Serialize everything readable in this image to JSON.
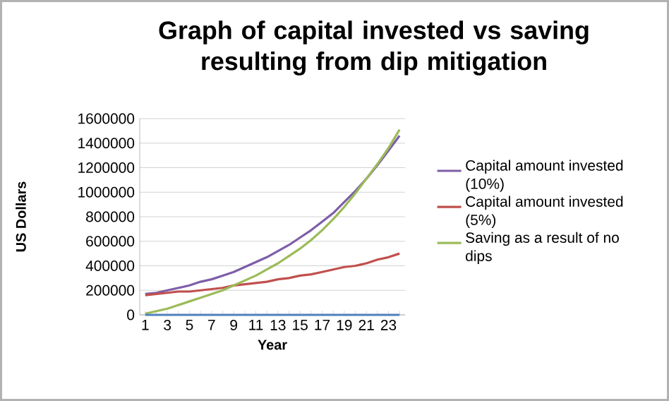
{
  "chart_data": {
    "type": "line",
    "title": "Graph of capital invested vs saving resulting from dip mitigation",
    "xlabel": "Year",
    "ylabel": "US Dollars",
    "categories": [
      "1",
      null,
      "3",
      null,
      "5",
      null,
      "7",
      null,
      "9",
      null,
      "11",
      null,
      "13",
      null,
      "15",
      null,
      "17",
      null,
      "19",
      null,
      "21",
      null,
      "23",
      null
    ],
    "series": [
      {
        "name": "Capital amount invested (10%)",
        "color": "#7e5ea8",
        "values": [
          170000,
          180000,
          200000,
          220000,
          240000,
          270000,
          290000,
          320000,
          350000,
          390000,
          430000,
          470000,
          520000,
          570000,
          630000,
          690000,
          760000,
          830000,
          920000,
          1010000,
          1110000,
          1220000,
          1340000,
          1460000
        ]
      },
      {
        "name": "Capital amount invested (5%)",
        "color": "#c0504d",
        "values": [
          160000,
          170000,
          180000,
          190000,
          190000,
          200000,
          210000,
          220000,
          240000,
          250000,
          260000,
          270000,
          290000,
          300000,
          320000,
          330000,
          350000,
          370000,
          390000,
          400000,
          420000,
          450000,
          470000,
          500000
        ]
      },
      {
        "name": "Saving as a result of no dips",
        "color": "#9bbb59",
        "values": [
          10000,
          30000,
          50000,
          80000,
          110000,
          140000,
          170000,
          200000,
          240000,
          280000,
          320000,
          370000,
          420000,
          480000,
          540000,
          610000,
          690000,
          780000,
          880000,
          990000,
          1110000,
          1230000,
          1360000,
          1510000
        ]
      },
      {
        "color": "#4f81bd",
        "values": [
          0,
          0,
          0,
          0,
          0,
          0,
          0,
          0,
          0,
          0,
          0,
          0,
          0,
          0,
          0,
          0,
          0,
          0,
          0,
          0,
          0,
          0,
          0,
          0
        ]
      }
    ],
    "ylim": [
      0,
      1600000
    ],
    "yticks": [
      0,
      200000,
      400000,
      600000,
      800000,
      1000000,
      1200000,
      1400000,
      1600000
    ],
    "grid": "y",
    "legend": "right",
    "marker": "none",
    "line_style": "solid"
  }
}
